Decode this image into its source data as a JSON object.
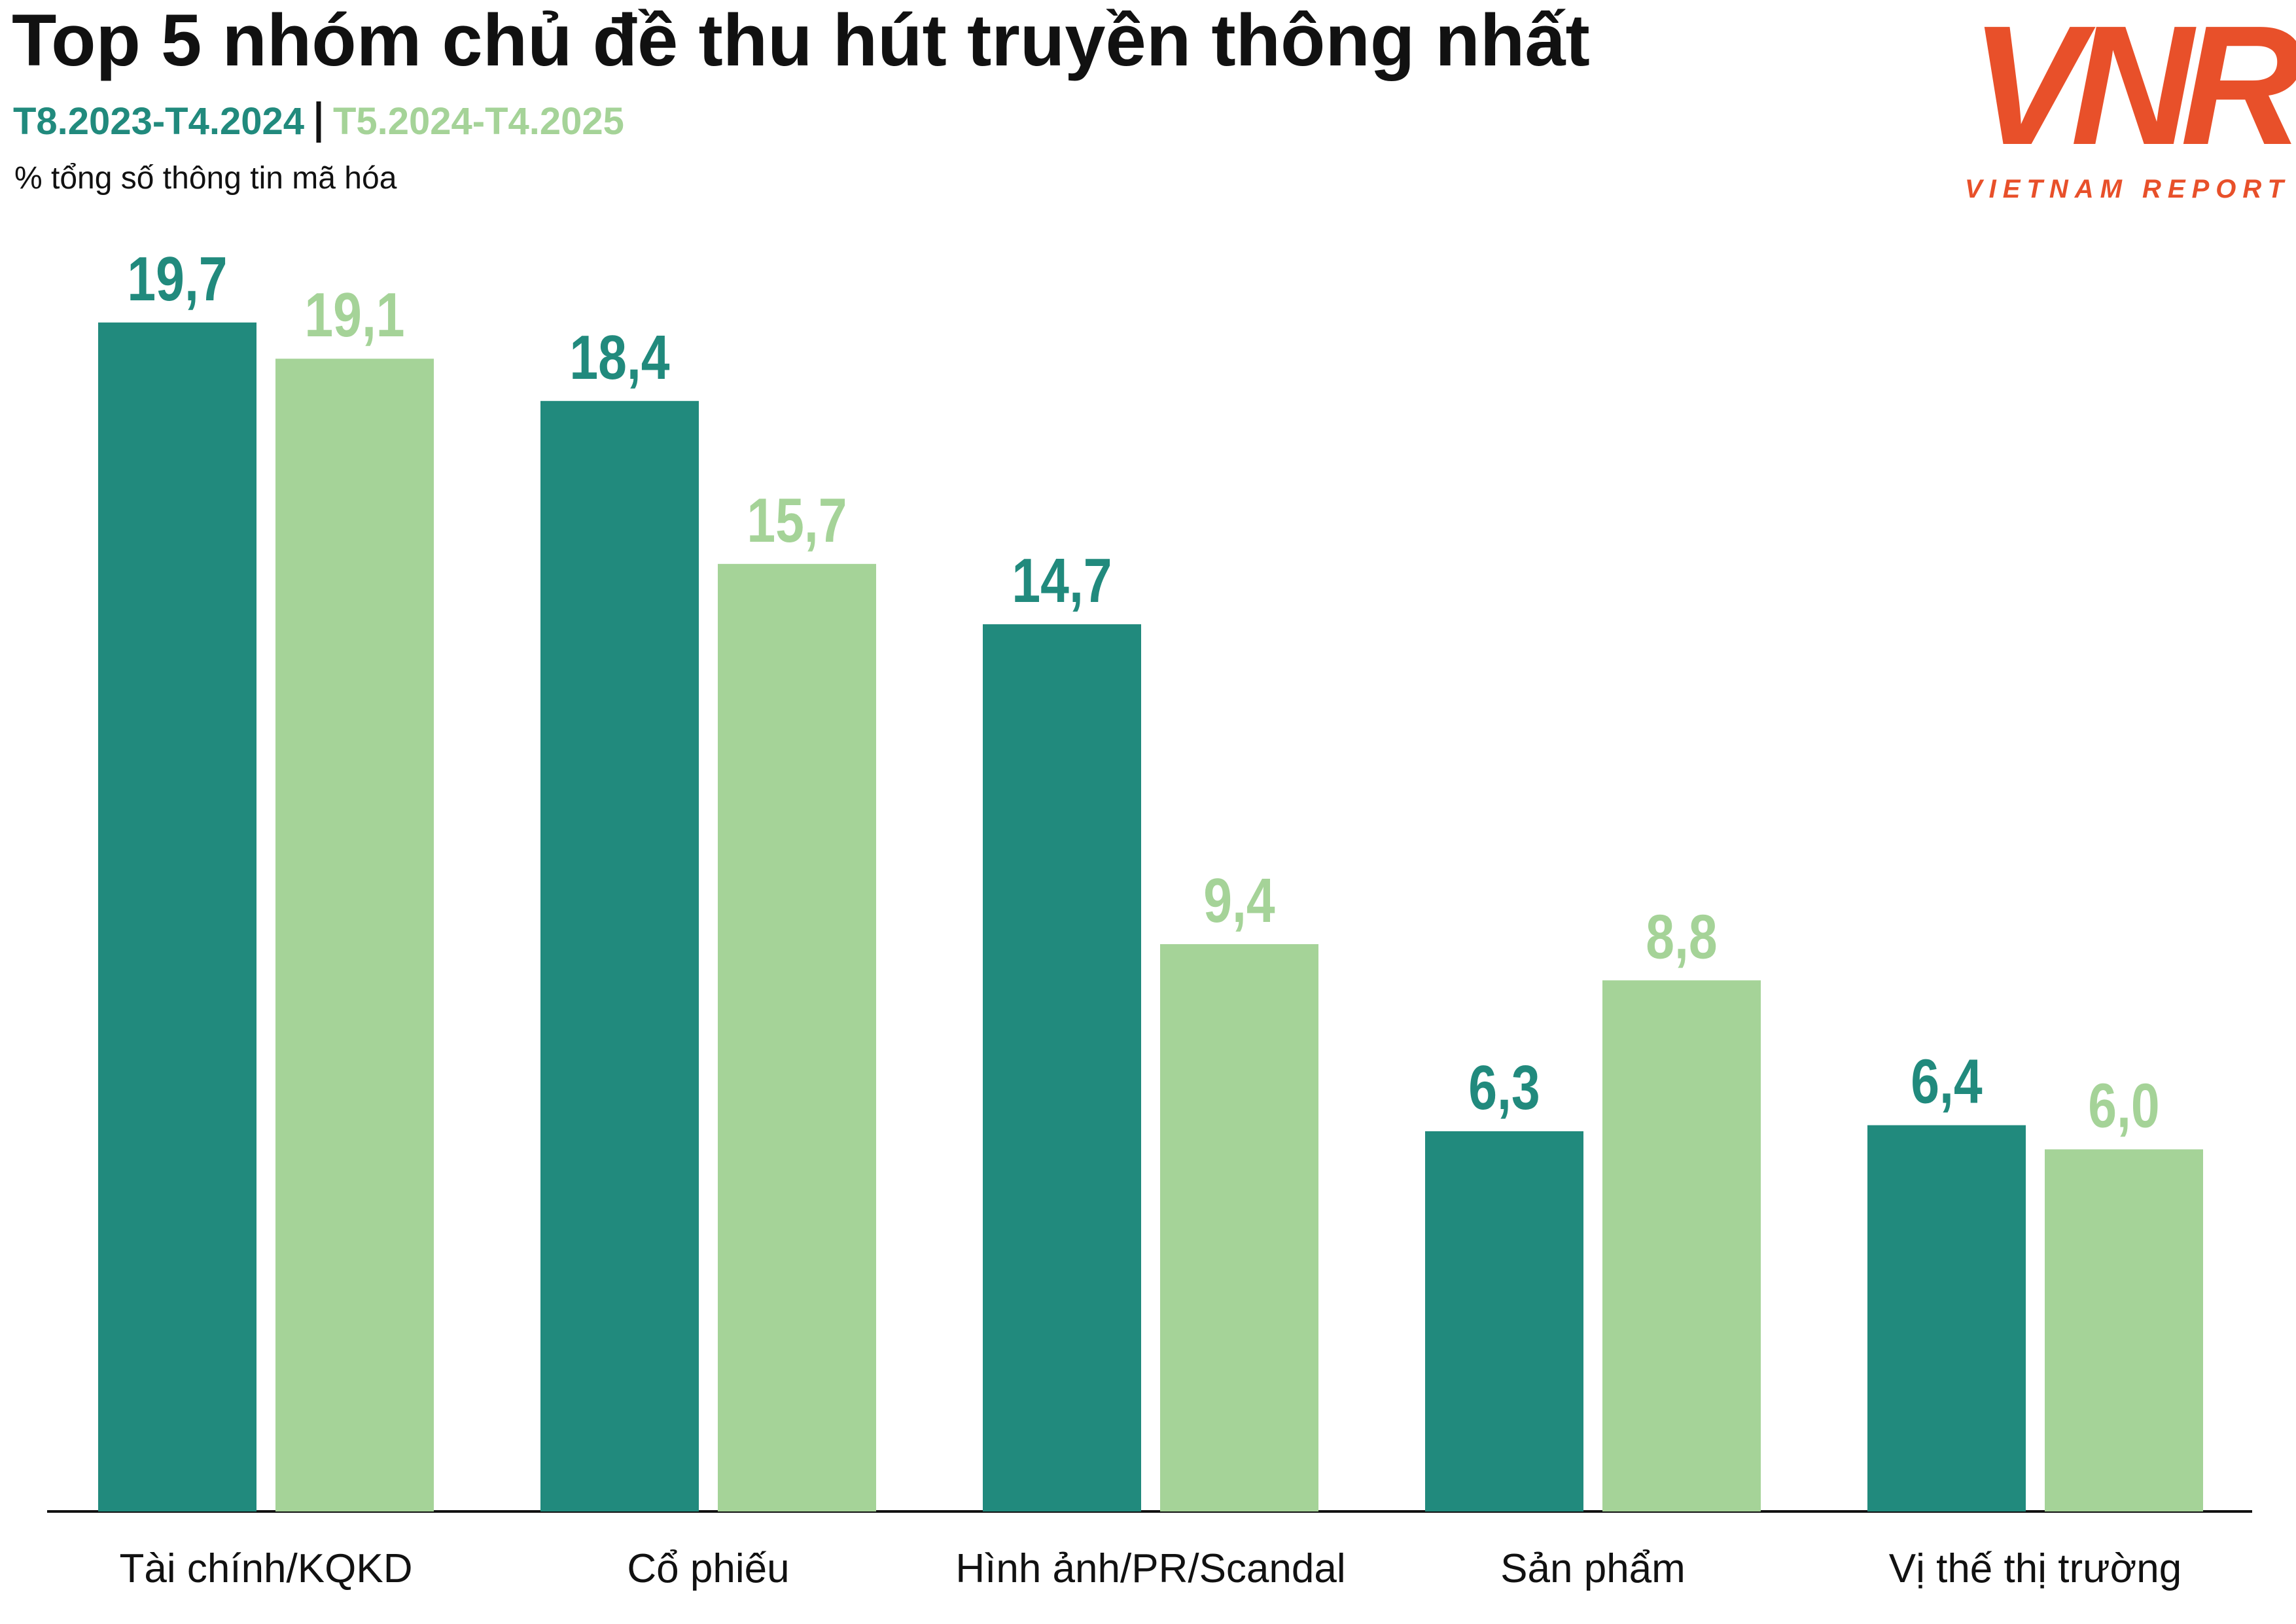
{
  "chart_data": {
    "type": "grouped-bar",
    "title": "Top 5 nhóm chủ đề thu hút truyền thông nhất",
    "subtitle": "% tổng số thông tin mã hóa",
    "categories": [
      "Tài chính/KQKD",
      "Cổ phiếu",
      "Hình ảnh/PR/Scandal",
      "Sản phẩm",
      "Vị thế thị trường"
    ],
    "series": [
      {
        "name": "T8.2023-T4.2024",
        "color": "#218a7d",
        "values": [
          19.7,
          18.4,
          14.7,
          6.3,
          6.4
        ],
        "value_labels": [
          "19,7",
          "18,4",
          "14,7",
          "6,3",
          "6,4"
        ]
      },
      {
        "name": "T5.2024-T4.2025",
        "color": "#a5d398",
        "values": [
          19.1,
          15.7,
          9.4,
          8.8,
          6.0
        ],
        "value_labels": [
          "19,1",
          "15,7",
          "9,4",
          "8,8",
          "6,0"
        ]
      }
    ],
    "ylim": [
      0,
      25
    ]
  },
  "logo": {
    "mark": "VNR",
    "text": "VIETNAM REPORT"
  }
}
